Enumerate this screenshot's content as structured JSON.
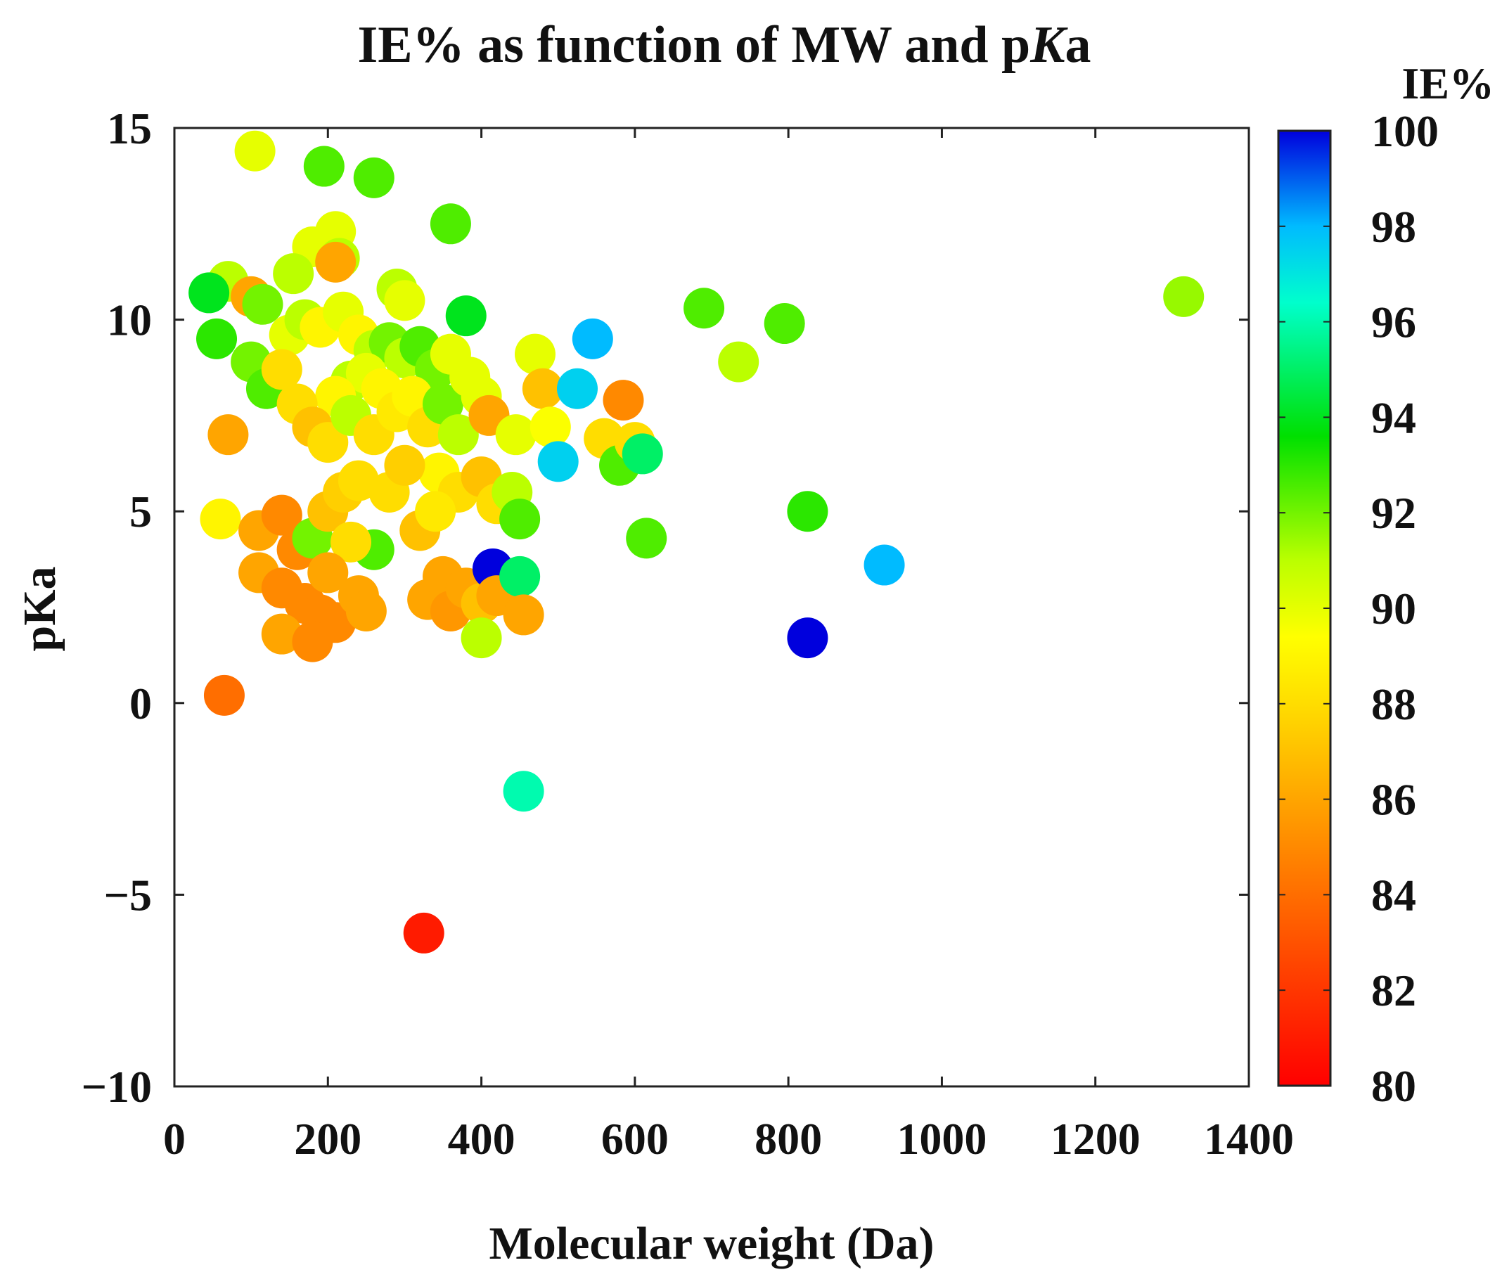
{
  "chart_data": {
    "type": "scatter",
    "title": {
      "prefix": "IE% as function of MW and p",
      "italic": "K",
      "suffix": "a"
    },
    "xlabel": "Molecular weight (Da)",
    "ylabel": "pKa",
    "colorbar_label": "IE%",
    "xlim": [
      0,
      1400
    ],
    "ylim": [
      -10,
      15
    ],
    "xticks": [
      0,
      200,
      400,
      600,
      800,
      1000,
      1200,
      1400
    ],
    "yticks": [
      -10,
      -5,
      0,
      5,
      10,
      15
    ],
    "ytick_labels": [
      "−10",
      "−5",
      "0",
      "5",
      "10",
      "15"
    ],
    "colorbar_range": [
      80,
      100
    ],
    "colorbar_ticks": [
      80,
      82,
      84,
      86,
      88,
      90,
      92,
      94,
      96,
      98,
      100
    ],
    "points": [
      {
        "mw": 105,
        "pka": 14.4,
        "ie": 90
      },
      {
        "mw": 195,
        "pka": 14.0,
        "ie": 92.5
      },
      {
        "mw": 260,
        "pka": 13.7,
        "ie": 92.5
      },
      {
        "mw": 360,
        "pka": 12.5,
        "ie": 92.5
      },
      {
        "mw": 210,
        "pka": 12.3,
        "ie": 90
      },
      {
        "mw": 180,
        "pka": 11.9,
        "ie": 90
      },
      {
        "mw": 215,
        "pka": 11.6,
        "ie": 91
      },
      {
        "mw": 155,
        "pka": 11.2,
        "ie": 91
      },
      {
        "mw": 210,
        "pka": 11.5,
        "ie": 86
      },
      {
        "mw": 70,
        "pka": 11.0,
        "ie": 91
      },
      {
        "mw": 45,
        "pka": 10.7,
        "ie": 94
      },
      {
        "mw": 100,
        "pka": 10.6,
        "ie": 86
      },
      {
        "mw": 115,
        "pka": 10.4,
        "ie": 92
      },
      {
        "mw": 290,
        "pka": 10.8,
        "ie": 91
      },
      {
        "mw": 300,
        "pka": 10.5,
        "ie": 90
      },
      {
        "mw": 380,
        "pka": 10.1,
        "ie": 94
      },
      {
        "mw": 55,
        "pka": 9.5,
        "ie": 93
      },
      {
        "mw": 100,
        "pka": 8.9,
        "ie": 92
      },
      {
        "mw": 120,
        "pka": 8.2,
        "ie": 92.5
      },
      {
        "mw": 150,
        "pka": 9.6,
        "ie": 90
      },
      {
        "mw": 170,
        "pka": 10.0,
        "ie": 91
      },
      {
        "mw": 190,
        "pka": 9.8,
        "ie": 89
      },
      {
        "mw": 220,
        "pka": 10.2,
        "ie": 90
      },
      {
        "mw": 240,
        "pka": 9.6,
        "ie": 89
      },
      {
        "mw": 260,
        "pka": 9.2,
        "ie": 91
      },
      {
        "mw": 280,
        "pka": 9.4,
        "ie": 92
      },
      {
        "mw": 300,
        "pka": 9.0,
        "ie": 91
      },
      {
        "mw": 320,
        "pka": 9.3,
        "ie": 92.5
      },
      {
        "mw": 340,
        "pka": 8.7,
        "ie": 92
      },
      {
        "mw": 360,
        "pka": 9.1,
        "ie": 90
      },
      {
        "mw": 230,
        "pka": 8.4,
        "ie": 91
      },
      {
        "mw": 250,
        "pka": 8.6,
        "ie": 90
      },
      {
        "mw": 270,
        "pka": 8.2,
        "ie": 89
      },
      {
        "mw": 210,
        "pka": 8.0,
        "ie": 89
      },
      {
        "mw": 160,
        "pka": 7.8,
        "ie": 88
      },
      {
        "mw": 140,
        "pka": 8.7,
        "ie": 88
      },
      {
        "mw": 180,
        "pka": 7.2,
        "ie": 87
      },
      {
        "mw": 200,
        "pka": 6.8,
        "ie": 88
      },
      {
        "mw": 230,
        "pka": 7.5,
        "ie": 91
      },
      {
        "mw": 260,
        "pka": 7.0,
        "ie": 88
      },
      {
        "mw": 290,
        "pka": 7.6,
        "ie": 88.5
      },
      {
        "mw": 310,
        "pka": 8.0,
        "ie": 89
      },
      {
        "mw": 330,
        "pka": 7.2,
        "ie": 88
      },
      {
        "mw": 350,
        "pka": 7.8,
        "ie": 92
      },
      {
        "mw": 370,
        "pka": 7.0,
        "ie": 91
      },
      {
        "mw": 385,
        "pka": 8.5,
        "ie": 90
      },
      {
        "mw": 400,
        "pka": 8.0,
        "ie": 90
      },
      {
        "mw": 410,
        "pka": 7.5,
        "ie": 86
      },
      {
        "mw": 70,
        "pka": 7.0,
        "ie": 86
      },
      {
        "mw": 445,
        "pka": 7.0,
        "ie": 90
      },
      {
        "mw": 470,
        "pka": 9.1,
        "ie": 90
      },
      {
        "mw": 480,
        "pka": 8.2,
        "ie": 87
      },
      {
        "mw": 490,
        "pka": 7.2,
        "ie": 89.5
      },
      {
        "mw": 345,
        "pka": 6.0,
        "ie": 89
      },
      {
        "mw": 370,
        "pka": 5.5,
        "ie": 88
      },
      {
        "mw": 400,
        "pka": 5.9,
        "ie": 87
      },
      {
        "mw": 420,
        "pka": 5.2,
        "ie": 88
      },
      {
        "mw": 440,
        "pka": 5.5,
        "ie": 91
      },
      {
        "mw": 450,
        "pka": 4.8,
        "ie": 92.5
      },
      {
        "mw": 500,
        "pka": 6.3,
        "ie": 97.5
      },
      {
        "mw": 525,
        "pka": 8.2,
        "ie": 97.5
      },
      {
        "mw": 545,
        "pka": 9.5,
        "ie": 98
      },
      {
        "mw": 560,
        "pka": 6.9,
        "ie": 88
      },
      {
        "mw": 585,
        "pka": 7.9,
        "ie": 85
      },
      {
        "mw": 580,
        "pka": 6.2,
        "ie": 92.5
      },
      {
        "mw": 600,
        "pka": 6.8,
        "ie": 88
      },
      {
        "mw": 610,
        "pka": 6.5,
        "ie": 95
      },
      {
        "mw": 615,
        "pka": 4.3,
        "ie": 92.5
      },
      {
        "mw": 690,
        "pka": 10.3,
        "ie": 92.5
      },
      {
        "mw": 735,
        "pka": 8.9,
        "ie": 91
      },
      {
        "mw": 795,
        "pka": 9.9,
        "ie": 92.5
      },
      {
        "mw": 825,
        "pka": 5.0,
        "ie": 93
      },
      {
        "mw": 825,
        "pka": 1.7,
        "ie": 100
      },
      {
        "mw": 925,
        "pka": 3.6,
        "ie": 98
      },
      {
        "mw": 1315,
        "pka": 10.6,
        "ie": 91.5
      },
      {
        "mw": 60,
        "pka": 4.8,
        "ie": 89
      },
      {
        "mw": 110,
        "pka": 4.5,
        "ie": 86
      },
      {
        "mw": 140,
        "pka": 4.9,
        "ie": 85
      },
      {
        "mw": 160,
        "pka": 4.0,
        "ie": 85
      },
      {
        "mw": 180,
        "pka": 4.3,
        "ie": 92
      },
      {
        "mw": 200,
        "pka": 5.0,
        "ie": 87
      },
      {
        "mw": 220,
        "pka": 5.5,
        "ie": 87.5
      },
      {
        "mw": 240,
        "pka": 5.8,
        "ie": 88
      },
      {
        "mw": 260,
        "pka": 4.0,
        "ie": 92.5
      },
      {
        "mw": 230,
        "pka": 4.2,
        "ie": 88
      },
      {
        "mw": 280,
        "pka": 5.5,
        "ie": 88
      },
      {
        "mw": 300,
        "pka": 6.2,
        "ie": 87.5
      },
      {
        "mw": 320,
        "pka": 4.5,
        "ie": 87
      },
      {
        "mw": 340,
        "pka": 5.0,
        "ie": 88.5
      },
      {
        "mw": 110,
        "pka": 3.4,
        "ie": 86
      },
      {
        "mw": 140,
        "pka": 3.0,
        "ie": 85
      },
      {
        "mw": 170,
        "pka": 2.6,
        "ie": 85
      },
      {
        "mw": 190,
        "pka": 2.3,
        "ie": 85
      },
      {
        "mw": 210,
        "pka": 2.1,
        "ie": 85
      },
      {
        "mw": 140,
        "pka": 1.8,
        "ie": 86
      },
      {
        "mw": 180,
        "pka": 1.6,
        "ie": 85
      },
      {
        "mw": 240,
        "pka": 2.8,
        "ie": 86
      },
      {
        "mw": 250,
        "pka": 2.4,
        "ie": 86
      },
      {
        "mw": 200,
        "pka": 3.4,
        "ie": 86
      },
      {
        "mw": 330,
        "pka": 2.7,
        "ie": 86
      },
      {
        "mw": 350,
        "pka": 3.3,
        "ie": 86
      },
      {
        "mw": 360,
        "pka": 2.4,
        "ie": 85.5
      },
      {
        "mw": 380,
        "pka": 3.0,
        "ie": 86
      },
      {
        "mw": 400,
        "pka": 2.6,
        "ie": 87
      },
      {
        "mw": 415,
        "pka": 3.5,
        "ie": 100
      },
      {
        "mw": 420,
        "pka": 2.8,
        "ie": 86
      },
      {
        "mw": 450,
        "pka": 3.3,
        "ie": 95
      },
      {
        "mw": 455,
        "pka": 2.3,
        "ie": 86
      },
      {
        "mw": 400,
        "pka": 1.7,
        "ie": 91
      },
      {
        "mw": 65,
        "pka": 0.2,
        "ie": 84
      },
      {
        "mw": 455,
        "pka": -2.3,
        "ie": 96
      },
      {
        "mw": 325,
        "pka": -6.0,
        "ie": 81
      }
    ]
  }
}
